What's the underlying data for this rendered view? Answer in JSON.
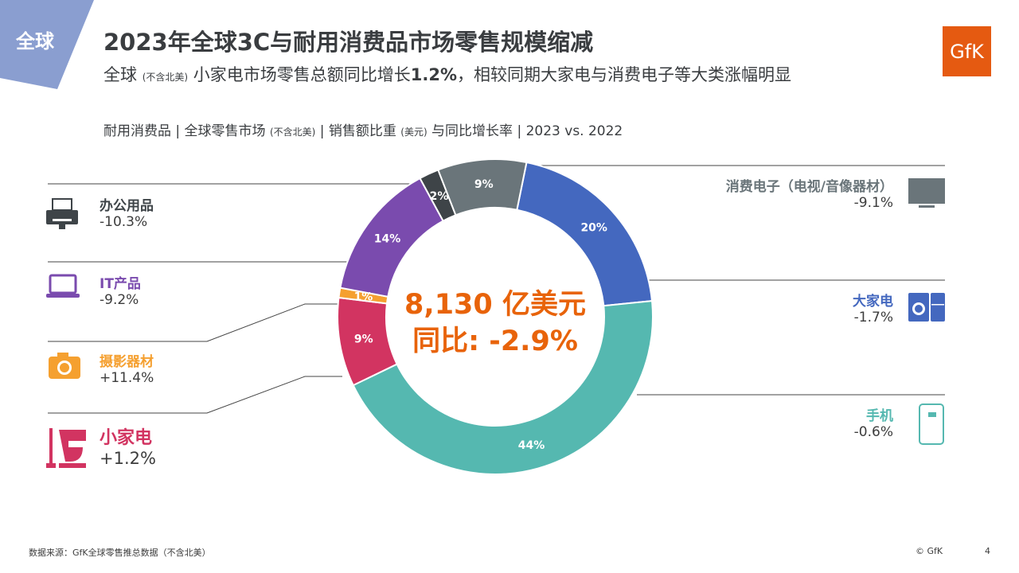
{
  "banner": {
    "text": "全球",
    "color": "#8A9ED0"
  },
  "header": {
    "title": "2023年全球3C与耐用消费品市场零售规模缩减",
    "subtitle_a": "全球",
    "subtitle_b": "(不含北美)",
    "subtitle_c": " 小家电市场零售总额同比增长",
    "subtitle_d": "1.2%",
    "subtitle_e": "，相较同期大家电与消费电子等大类涨幅明显"
  },
  "logo": {
    "text": "GfK",
    "color": "#E55A11"
  },
  "chart_sub": {
    "a": "耐用消费品 | 全球零售市场 ",
    "b": "(不含北美)",
    "c": " | 销售额比重 ",
    "d": "(美元)",
    "e": " 与同比增长率 | 2023 vs. 2022"
  },
  "center": {
    "total": "8,130 亿美元",
    "yoy": "同比: -2.9%"
  },
  "chart_data": {
    "type": "pie",
    "donut": true,
    "categories": [
      "大家电",
      "手机",
      "小家电",
      "摄影器材",
      "IT产品",
      "办公用品",
      "消费电子（电视/音像器材）"
    ],
    "values": [
      20,
      44,
      9,
      1,
      14,
      2,
      9
    ],
    "labels": [
      "20%",
      "44%",
      "9%",
      "1%",
      "14%",
      "2%",
      "9%"
    ],
    "growth": [
      "-1.7%",
      "-0.6%",
      "+1.2%",
      "+11.4%",
      "-9.2%",
      "-10.3%",
      "-9.1%"
    ],
    "colors": [
      "#4468BF",
      "#55B8B0",
      "#D23461",
      "#F5A030",
      "#7A4BAE",
      "#3E4448",
      "#6A757A"
    ],
    "icons": [
      "washer-fridge-icon",
      "phone-icon",
      "mixer-vacuum-icon",
      "camera-icon",
      "laptop-icon",
      "printer-icon",
      "tv-icon"
    ]
  },
  "footer": {
    "source": "数据来源：GfK全球零售推总数据（不含北美）",
    "copyright": "© GfK",
    "page": "4"
  }
}
